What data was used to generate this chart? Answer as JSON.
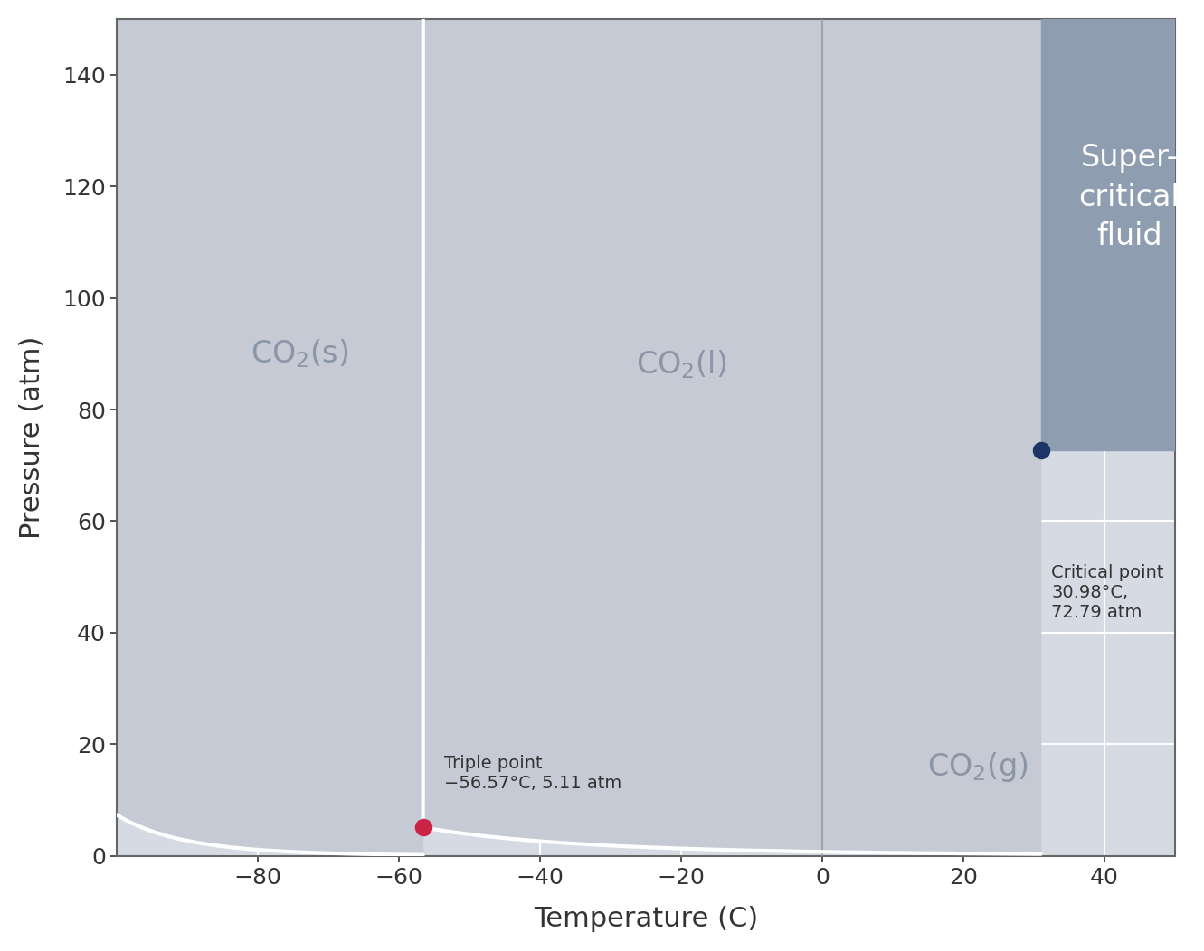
{
  "title": "",
  "xlabel": "Temperature (C)",
  "ylabel": "Pressure (atm)",
  "xlim": [
    -100,
    50
  ],
  "ylim": [
    0,
    150
  ],
  "xticks": [
    -80,
    -60,
    -40,
    -20,
    0,
    20,
    40
  ],
  "yticks": [
    0,
    20,
    40,
    60,
    80,
    100,
    120,
    140
  ],
  "triple_point": {
    "T": -56.57,
    "P": 5.11
  },
  "critical_point": {
    "T": 30.98,
    "P": 72.79
  },
  "triple_point_label": "Triple point\n−56.57°C, 5.11 atm",
  "critical_point_label": "Critical point\n30.98°C,\n72.79 atm",
  "bg_color": "#ffffff",
  "solid_liquid_color": "#c5cad4",
  "gas_color": "#d6dbe3",
  "supercritical_color": "#8f9db0",
  "curve_color": "#ffffff",
  "label_color_phases": "#8a96a8",
  "label_color_supercritical": "#ffffff",
  "triple_point_color": "#cc2244",
  "critical_point_color": "#1c3564",
  "grid_color": "#ffffff",
  "axis_color": "#666666",
  "tick_color": "#333333",
  "font_size_labels": 18,
  "font_size_axis_title": 22,
  "font_size_phase": 24,
  "font_size_annotations": 14
}
